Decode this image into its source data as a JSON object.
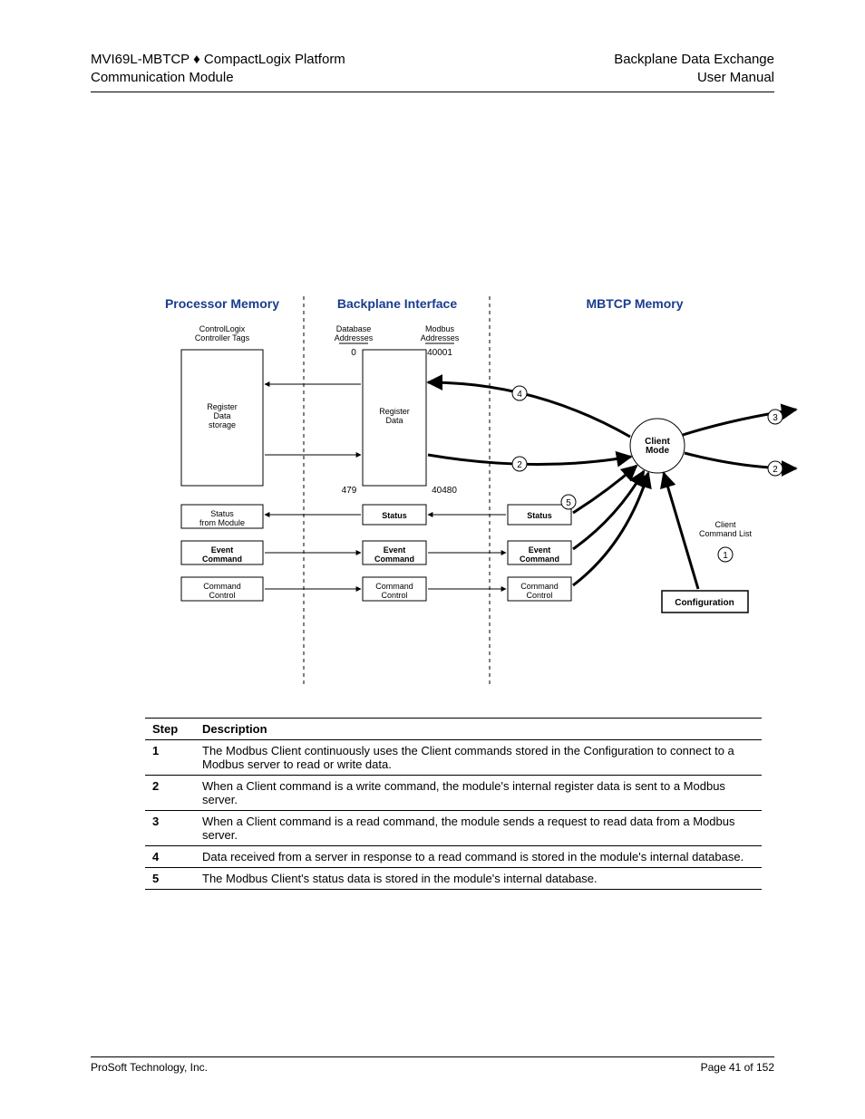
{
  "header": {
    "left_line1": "MVI69L-MBTCP ♦ CompactLogix Platform",
    "left_line2": "Communication Module",
    "right_line1": "Backplane Data Exchange",
    "right_line2": "User Manual"
  },
  "diagram": {
    "sections": {
      "processor": "Processor Memory",
      "backplane": "Backplane Interface",
      "mbtcp": "MBTCP Memory"
    },
    "labels": {
      "controller_tags": "ControlLogix\nController Tags",
      "db_addresses": "Database\nAddresses",
      "modbus_addresses": "Modbus\nAddresses",
      "db_start": "0",
      "db_end": "479",
      "mb_start": "40001",
      "mb_end": "40480",
      "register_data_storage": "Register\nData\nstorage",
      "register_data": "Register\nData",
      "status_from_module": "Status\nfrom Module",
      "status": "Status",
      "event_command": "Event\nCommand",
      "command_control": "Command\nControl",
      "client_mode": "Client\nMode",
      "client_command_list": "Client\nCommand List",
      "configuration": "Configuration"
    },
    "step_markers": [
      "1",
      "2",
      "3",
      "4",
      "5"
    ],
    "colors": {
      "text": "#000000",
      "line": "#000000",
      "title_blue": "#1a3c8c",
      "fill": "#ffffff"
    }
  },
  "steps_table": {
    "header": {
      "step": "Step",
      "desc": "Description"
    },
    "rows": [
      {
        "step": "1",
        "desc": "The Modbus Client continuously uses the Client commands stored in the Configuration to connect to a Modbus server to read or write data."
      },
      {
        "step": "2",
        "desc": "When a Client command is a write command, the module's internal register data is sent to a Modbus server."
      },
      {
        "step": "3",
        "desc": "When a Client command is a read command, the module sends a request to read data from a Modbus server."
      },
      {
        "step": "4",
        "desc": "Data received from a server in response to a read command is stored in the module's internal database."
      },
      {
        "step": "5",
        "desc": "The Modbus Client's status data is stored in the module's internal database."
      }
    ]
  },
  "footer": {
    "left": "ProSoft Technology, Inc.",
    "right": "Page 41 of 152"
  }
}
